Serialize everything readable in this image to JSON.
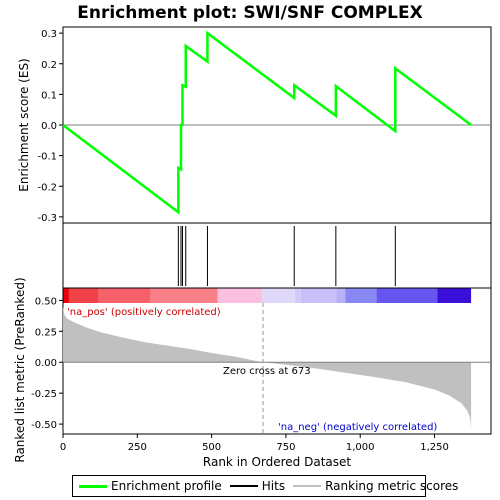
{
  "chart_data": {
    "type": "line",
    "title": "Enrichment plot: SWI/SNF COMPLEX",
    "xlabel": "Rank in Ordered Dataset",
    "xlim": [
      0,
      1440
    ],
    "x_ticks": [
      0,
      250,
      500,
      750,
      1000,
      1250
    ],
    "x_tick_labels": [
      "0",
      "250",
      "500",
      "750",
      "1,000",
      "1,250"
    ],
    "top_panel": {
      "ylabel": "Enrichment score (ES)",
      "ylim": [
        -0.32,
        0.32
      ],
      "y_ticks": [
        -0.3,
        -0.2,
        -0.1,
        0.0,
        0.1,
        0.2,
        0.3
      ],
      "y_tick_labels": [
        "-0.3",
        "-0.2",
        "-0.1",
        "0.0",
        "0.1",
        "0.2",
        "0.3"
      ],
      "series": [
        {
          "name": "Enrichment profile",
          "color": "#00ff00",
          "points": [
            [
              0,
              0.0
            ],
            [
              388,
              -0.285
            ],
            [
              388,
              -0.14
            ],
            [
              397,
              -0.145
            ],
            [
              397,
              0.0
            ],
            [
              402,
              0.0
            ],
            [
              402,
              0.13
            ],
            [
              413,
              0.125
            ],
            [
              413,
              0.258
            ],
            [
              486,
              0.207
            ],
            [
              486,
              0.3
            ],
            [
              778,
              0.088
            ],
            [
              778,
              0.13
            ],
            [
              918,
              0.03
            ],
            [
              918,
              0.127
            ],
            [
              1118,
              -0.02
            ],
            [
              1118,
              0.185
            ],
            [
              1373,
              0.0
            ]
          ]
        }
      ]
    },
    "hits": [
      388,
      397,
      402,
      413,
      486,
      778,
      918,
      1118
    ],
    "bottom_panel": {
      "ylabel": "Ranked list metric (PreRanked)",
      "ylim": [
        -0.58,
        0.6
      ],
      "y_ticks": [
        -0.5,
        -0.25,
        0.0,
        0.25,
        0.5
      ],
      "y_tick_labels": [
        "-0.50",
        "-0.25",
        "0.00",
        "0.25",
        "0.50"
      ],
      "metric_color": "#c0c0c0",
      "metric_points": [
        [
          0,
          0.45
        ],
        [
          5,
          0.38
        ],
        [
          15,
          0.35
        ],
        [
          40,
          0.32
        ],
        [
          80,
          0.28
        ],
        [
          130,
          0.24
        ],
        [
          200,
          0.2
        ],
        [
          280,
          0.16
        ],
        [
          350,
          0.135
        ],
        [
          420,
          0.11
        ],
        [
          500,
          0.075
        ],
        [
          580,
          0.045
        ],
        [
          640,
          0.015
        ],
        [
          673,
          0.0
        ],
        [
          750,
          -0.02
        ],
        [
          850,
          -0.05
        ],
        [
          950,
          -0.085
        ],
        [
          1050,
          -0.12
        ],
        [
          1150,
          -0.16
        ],
        [
          1250,
          -0.22
        ],
        [
          1300,
          -0.27
        ],
        [
          1340,
          -0.33
        ],
        [
          1360,
          -0.39
        ],
        [
          1370,
          -0.45
        ],
        [
          1373,
          -0.55
        ]
      ],
      "zero_cross": 673,
      "annotations": {
        "pos_label": "'na_pos' (positively correlated)",
        "neg_label": "'na_neg' (negatively correlated)",
        "zero_label": "Zero cross at 673"
      },
      "pos_color": "#cc0000",
      "neg_color": "#0000cc"
    },
    "colorbar": [
      {
        "start": 0,
        "end": 20,
        "color": "#e8000a"
      },
      {
        "start": 20,
        "end": 120,
        "color": "#f04048"
      },
      {
        "start": 120,
        "end": 295,
        "color": "#f5606a"
      },
      {
        "start": 295,
        "end": 520,
        "color": "#fa8088"
      },
      {
        "start": 520,
        "end": 670,
        "color": "#fbc0e0"
      },
      {
        "start": 670,
        "end": 780,
        "color": "#e0d8f8"
      },
      {
        "start": 780,
        "end": 800,
        "color": "#d0ccfa"
      },
      {
        "start": 800,
        "end": 920,
        "color": "#c8c0f8"
      },
      {
        "start": 920,
        "end": 950,
        "color": "#b8b0f8"
      },
      {
        "start": 950,
        "end": 1055,
        "color": "#8888f4"
      },
      {
        "start": 1055,
        "end": 1260,
        "color": "#6655ee"
      },
      {
        "start": 1260,
        "end": 1373,
        "color": "#3a10d8"
      }
    ],
    "legend": [
      {
        "label": "Enrichment profile",
        "color": "#00ff00"
      },
      {
        "label": "Hits",
        "color": "#000000"
      },
      {
        "label": "Ranking metric scores",
        "color": "#c0c0c0"
      }
    ]
  }
}
